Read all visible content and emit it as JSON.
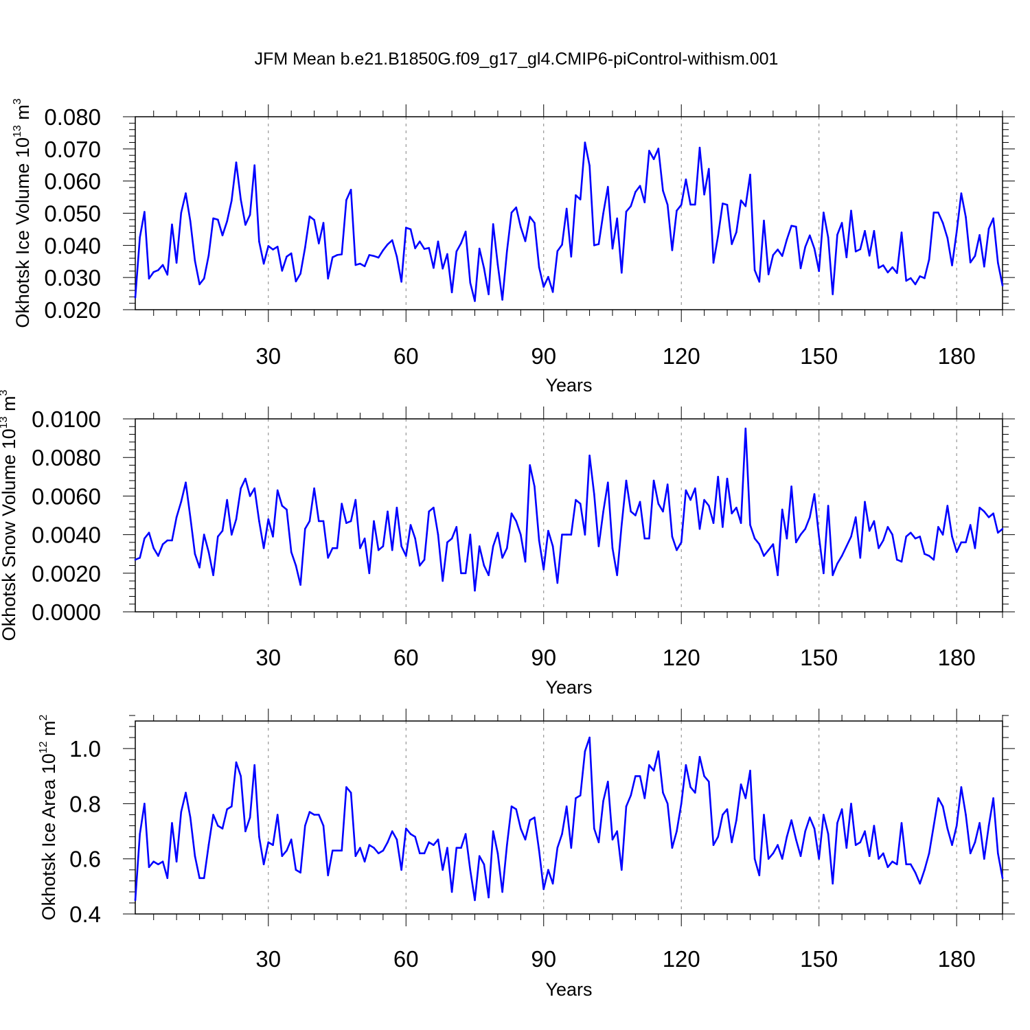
{
  "title": "JFM Mean b.e21.B1850G.f09_g17_gl4.CMIP6-piControl-withism.001",
  "colors": {
    "series": "#0000ff",
    "axes": "#000000",
    "grid": "#808080"
  },
  "chart_data": [
    {
      "type": "line",
      "ylabel_main": "Okhotsk Ice Volume 10",
      "ylabel_exp": "13",
      "ylabel_unit": " m",
      "ylabel_unit_exp": "3",
      "xlabel": "Years",
      "xlim": [
        1,
        190
      ],
      "ylim": [
        0.02,
        0.08
      ],
      "yticks": [
        0.02,
        0.03,
        0.04,
        0.05,
        0.06,
        0.07,
        0.08
      ],
      "ytick_labels": [
        "0.020",
        "0.030",
        "0.040",
        "0.050",
        "0.060",
        "0.070",
        "0.080"
      ],
      "xticks": [
        30,
        60,
        90,
        120,
        150,
        180
      ],
      "xtick_labels": [
        "30",
        "60",
        "90",
        "120",
        "150",
        "180"
      ],
      "x_start": 1,
      "values": [
        0.0238,
        0.0425,
        0.0504,
        0.0297,
        0.0317,
        0.0323,
        0.0339,
        0.0309,
        0.0465,
        0.0346,
        0.0501,
        0.0562,
        0.0475,
        0.0352,
        0.0279,
        0.0297,
        0.0369,
        0.0484,
        0.048,
        0.0431,
        0.0475,
        0.0539,
        0.0658,
        0.0542,
        0.0464,
        0.0495,
        0.0649,
        0.0412,
        0.0343,
        0.0398,
        0.0387,
        0.0396,
        0.0321,
        0.0365,
        0.0375,
        0.0288,
        0.0312,
        0.0393,
        0.049,
        0.0479,
        0.0406,
        0.047,
        0.0297,
        0.0363,
        0.037,
        0.0372,
        0.0541,
        0.0573,
        0.0339,
        0.0343,
        0.0335,
        0.037,
        0.0367,
        0.0362,
        0.0385,
        0.0403,
        0.0416,
        0.0365,
        0.0287,
        0.0455,
        0.045,
        0.0391,
        0.0412,
        0.0389,
        0.0392,
        0.033,
        0.0412,
        0.0328,
        0.0373,
        0.0254,
        0.0381,
        0.0407,
        0.0443,
        0.0284,
        0.0227,
        0.039,
        0.0329,
        0.0248,
        0.0466,
        0.034,
        0.0231,
        0.0382,
        0.0502,
        0.0518,
        0.0457,
        0.0413,
        0.0489,
        0.047,
        0.0332,
        0.0271,
        0.0302,
        0.0255,
        0.0382,
        0.0402,
        0.0514,
        0.0365,
        0.0556,
        0.0543,
        0.072,
        0.0648,
        0.04,
        0.0404,
        0.05,
        0.0582,
        0.039,
        0.0484,
        0.0315,
        0.0505,
        0.0522,
        0.0566,
        0.0585,
        0.0534,
        0.0694,
        0.0668,
        0.0701,
        0.057,
        0.0526,
        0.0385,
        0.0508,
        0.0526,
        0.0605,
        0.0527,
        0.0527,
        0.0704,
        0.0558,
        0.0638,
        0.0346,
        0.0429,
        0.053,
        0.0526,
        0.0404,
        0.0441,
        0.054,
        0.0522,
        0.062,
        0.0323,
        0.0287,
        0.0477,
        0.031,
        0.037,
        0.0387,
        0.0367,
        0.0418,
        0.0461,
        0.0458,
        0.0329,
        0.0395,
        0.0431,
        0.039,
        0.032,
        0.0502,
        0.0425,
        0.0248,
        0.0433,
        0.047,
        0.0363,
        0.0508,
        0.0381,
        0.0388,
        0.0445,
        0.0368,
        0.0445,
        0.033,
        0.0338,
        0.0316,
        0.0332,
        0.0314,
        0.044,
        0.029,
        0.0298,
        0.0279,
        0.0304,
        0.0298,
        0.0356,
        0.0502,
        0.0502,
        0.047,
        0.0423,
        0.0338,
        0.0442,
        0.0562,
        0.0488,
        0.0347,
        0.0367,
        0.0432,
        0.0334,
        0.0452,
        0.0484,
        0.0346,
        0.0275
      ]
    },
    {
      "type": "line",
      "ylabel_main": "Okhotsk Snow Volume 10",
      "ylabel_exp": "13",
      "ylabel_unit": " m",
      "ylabel_unit_exp": "3",
      "xlabel": "Years",
      "xlim": [
        1,
        190
      ],
      "ylim": [
        0.0,
        0.01
      ],
      "yticks": [
        0.0,
        0.002,
        0.004,
        0.006,
        0.008,
        0.01
      ],
      "ytick_labels": [
        "0.0000",
        "0.0020",
        "0.0040",
        "0.0060",
        "0.0080",
        "0.0100"
      ],
      "xticks": [
        30,
        60,
        90,
        120,
        150,
        180
      ],
      "xtick_labels": [
        "30",
        "60",
        "90",
        "120",
        "150",
        "180"
      ],
      "x_start": 1,
      "values": [
        0.0027,
        0.0028,
        0.0038,
        0.0041,
        0.0033,
        0.0029,
        0.0035,
        0.0037,
        0.0037,
        0.0049,
        0.0057,
        0.0067,
        0.0049,
        0.003,
        0.0023,
        0.004,
        0.0031,
        0.0019,
        0.0039,
        0.0042,
        0.0058,
        0.004,
        0.0048,
        0.0064,
        0.0069,
        0.006,
        0.0064,
        0.0047,
        0.0033,
        0.0048,
        0.0039,
        0.0063,
        0.0055,
        0.0053,
        0.0031,
        0.0024,
        0.0014,
        0.0043,
        0.0047,
        0.0064,
        0.0047,
        0.0047,
        0.0028,
        0.0033,
        0.0033,
        0.0056,
        0.0046,
        0.0047,
        0.0058,
        0.0033,
        0.0038,
        0.002,
        0.0047,
        0.0032,
        0.0034,
        0.0052,
        0.0032,
        0.0054,
        0.0034,
        0.0029,
        0.0045,
        0.0038,
        0.0024,
        0.0027,
        0.0052,
        0.0054,
        0.004,
        0.0016,
        0.0036,
        0.0038,
        0.0044,
        0.002,
        0.002,
        0.004,
        0.0011,
        0.0034,
        0.0024,
        0.0019,
        0.0034,
        0.0041,
        0.0028,
        0.0033,
        0.0051,
        0.0047,
        0.004,
        0.0026,
        0.0076,
        0.0065,
        0.0037,
        0.0022,
        0.0042,
        0.0034,
        0.0015,
        0.004,
        0.004,
        0.004,
        0.0058,
        0.0056,
        0.004,
        0.0081,
        0.0061,
        0.0034,
        0.0052,
        0.0067,
        0.0033,
        0.0019,
        0.0045,
        0.0068,
        0.0052,
        0.005,
        0.0057,
        0.0038,
        0.0038,
        0.0068,
        0.0056,
        0.0052,
        0.0066,
        0.0039,
        0.0032,
        0.0036,
        0.0063,
        0.0058,
        0.0064,
        0.0043,
        0.0058,
        0.0055,
        0.0046,
        0.007,
        0.0044,
        0.0069,
        0.0051,
        0.0054,
        0.0046,
        0.0095,
        0.0045,
        0.0038,
        0.0035,
        0.0029,
        0.0032,
        0.0035,
        0.0019,
        0.0053,
        0.0038,
        0.0065,
        0.0036,
        0.004,
        0.0043,
        0.0049,
        0.0061,
        0.0039,
        0.002,
        0.0055,
        0.0019,
        0.0025,
        0.0029,
        0.0034,
        0.0039,
        0.0049,
        0.0028,
        0.0057,
        0.0042,
        0.0047,
        0.0033,
        0.0037,
        0.0044,
        0.004,
        0.0027,
        0.0026,
        0.0039,
        0.0041,
        0.0038,
        0.0039,
        0.003,
        0.0029,
        0.0027,
        0.0044,
        0.004,
        0.0055,
        0.0039,
        0.0031,
        0.0036,
        0.0036,
        0.0045,
        0.0033,
        0.0054,
        0.0052,
        0.0049,
        0.0051,
        0.0041,
        0.0043
      ]
    },
    {
      "type": "line",
      "ylabel_main": "Okhotsk Ice Area 10",
      "ylabel_exp": "12",
      "ylabel_unit": " m",
      "ylabel_unit_exp": "2",
      "xlabel": "Years",
      "xlim": [
        1,
        190
      ],
      "ylim": [
        0.4,
        1.1
      ],
      "yticks": [
        0.4,
        0.6,
        0.8,
        1.0
      ],
      "ytick_labels": [
        "0.4",
        "0.6",
        "0.8",
        "1.0"
      ],
      "xticks": [
        30,
        60,
        90,
        120,
        150,
        180
      ],
      "xtick_labels": [
        "30",
        "60",
        "90",
        "120",
        "150",
        "180"
      ],
      "x_start": 1,
      "values": [
        0.45,
        0.69,
        0.8,
        0.57,
        0.59,
        0.58,
        0.59,
        0.53,
        0.73,
        0.59,
        0.77,
        0.84,
        0.75,
        0.61,
        0.53,
        0.53,
        0.65,
        0.76,
        0.72,
        0.71,
        0.78,
        0.79,
        0.95,
        0.9,
        0.7,
        0.75,
        0.94,
        0.68,
        0.58,
        0.66,
        0.65,
        0.76,
        0.61,
        0.63,
        0.67,
        0.56,
        0.55,
        0.72,
        0.77,
        0.76,
        0.76,
        0.72,
        0.54,
        0.63,
        0.63,
        0.63,
        0.86,
        0.84,
        0.61,
        0.64,
        0.59,
        0.65,
        0.64,
        0.62,
        0.63,
        0.66,
        0.7,
        0.67,
        0.56,
        0.71,
        0.69,
        0.68,
        0.62,
        0.62,
        0.66,
        0.65,
        0.67,
        0.56,
        0.64,
        0.48,
        0.64,
        0.64,
        0.69,
        0.56,
        0.45,
        0.61,
        0.58,
        0.46,
        0.7,
        0.62,
        0.48,
        0.65,
        0.79,
        0.78,
        0.71,
        0.67,
        0.74,
        0.75,
        0.63,
        0.49,
        0.56,
        0.51,
        0.64,
        0.69,
        0.79,
        0.64,
        0.82,
        0.83,
        0.99,
        1.04,
        0.71,
        0.66,
        0.81,
        0.88,
        0.67,
        0.7,
        0.56,
        0.79,
        0.83,
        0.9,
        0.9,
        0.82,
        0.94,
        0.92,
        0.99,
        0.84,
        0.8,
        0.64,
        0.7,
        0.8,
        0.94,
        0.86,
        0.84,
        0.97,
        0.9,
        0.88,
        0.65,
        0.68,
        0.76,
        0.78,
        0.66,
        0.74,
        0.87,
        0.82,
        0.92,
        0.6,
        0.54,
        0.76,
        0.6,
        0.62,
        0.65,
        0.6,
        0.68,
        0.74,
        0.67,
        0.61,
        0.7,
        0.75,
        0.71,
        0.6,
        0.76,
        0.69,
        0.51,
        0.73,
        0.78,
        0.64,
        0.8,
        0.65,
        0.66,
        0.7,
        0.61,
        0.72,
        0.6,
        0.62,
        0.57,
        0.59,
        0.58,
        0.73,
        0.58,
        0.58,
        0.55,
        0.51,
        0.56,
        0.62,
        0.72,
        0.82,
        0.79,
        0.71,
        0.65,
        0.72,
        0.86,
        0.76,
        0.62,
        0.66,
        0.73,
        0.6,
        0.72,
        0.82,
        0.62,
        0.53
      ]
    }
  ]
}
